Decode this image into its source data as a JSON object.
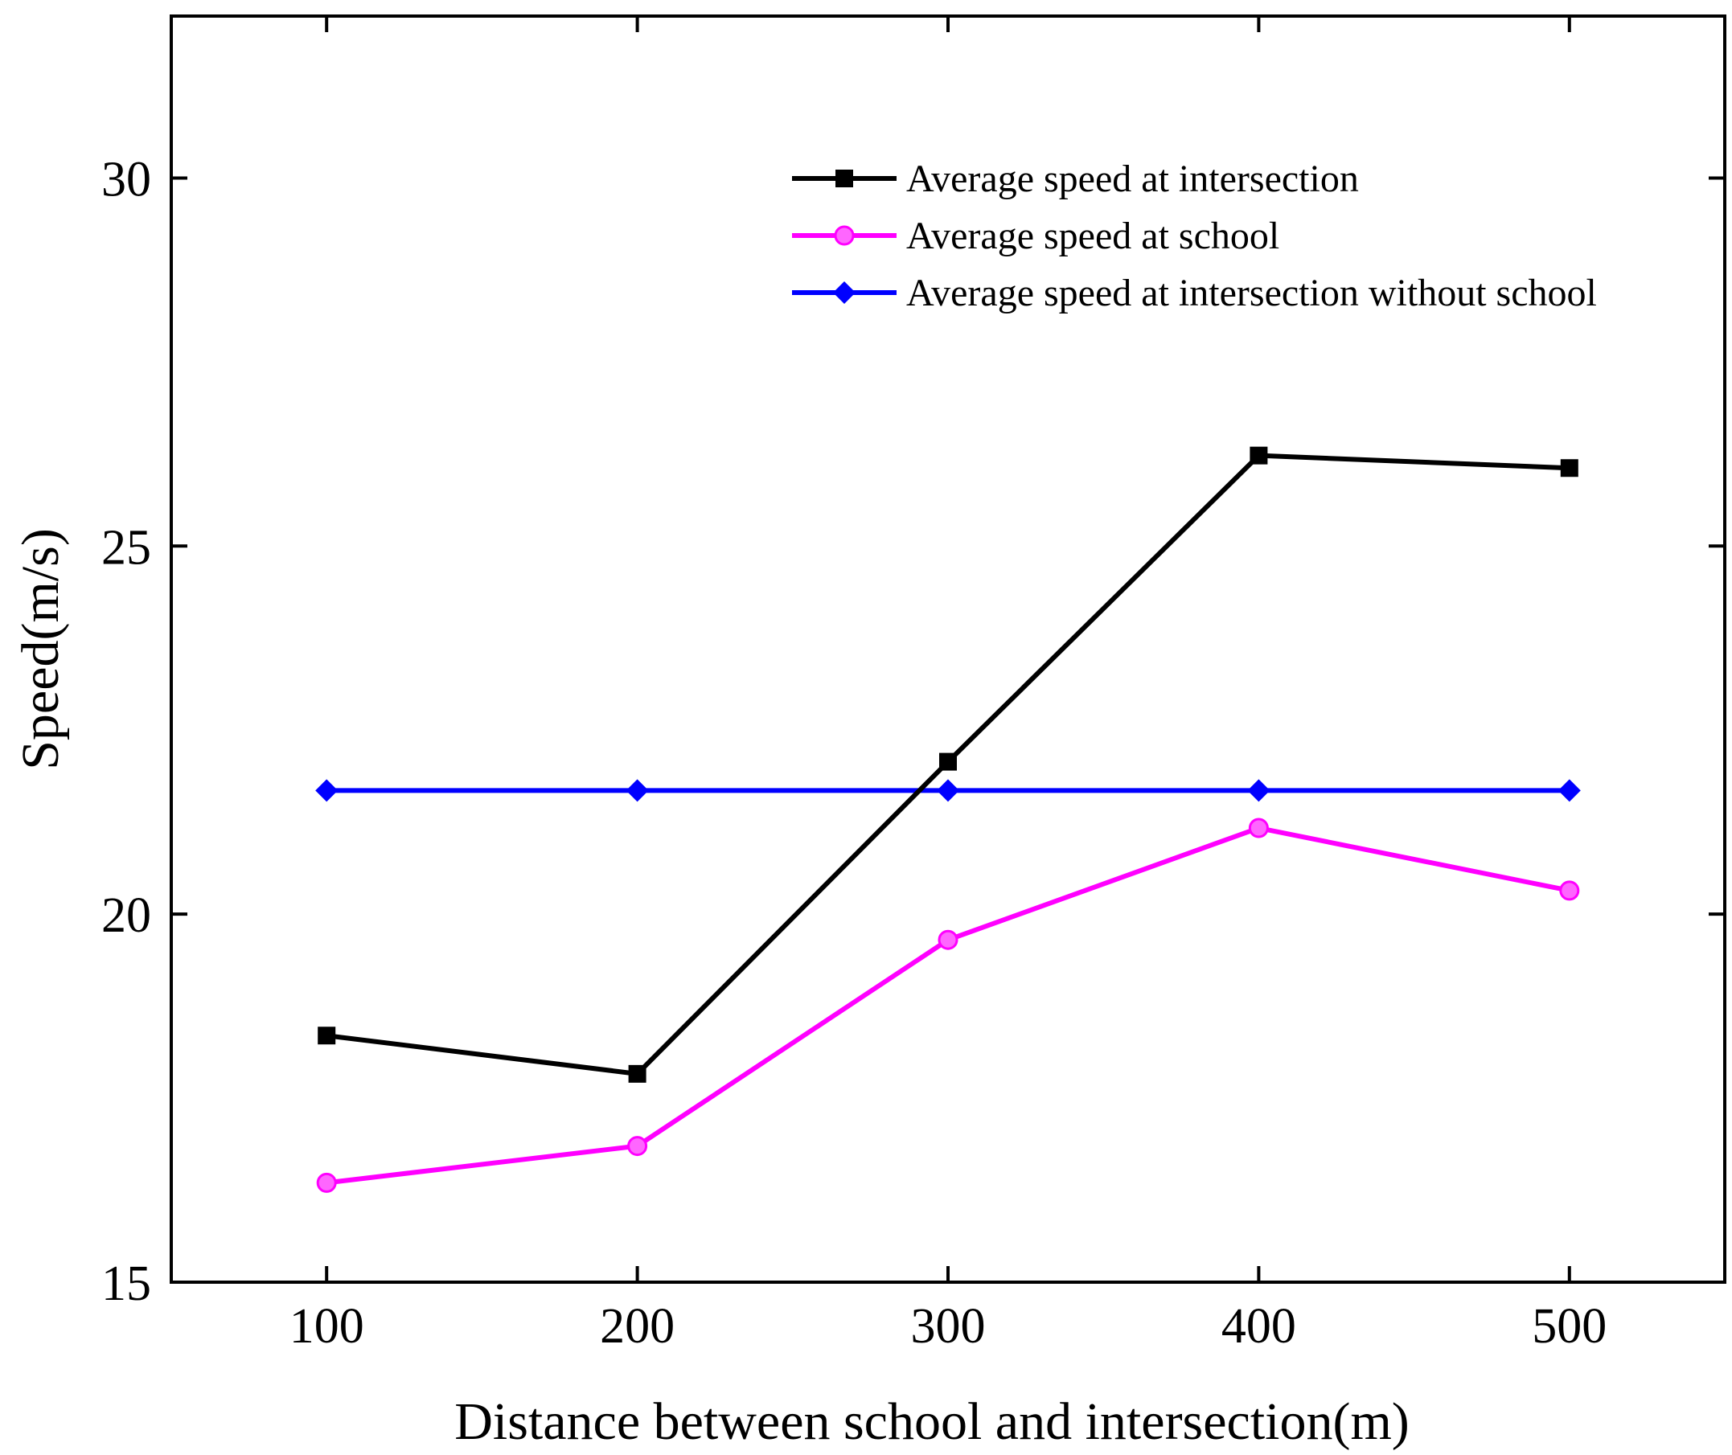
{
  "chart_data": {
    "type": "line",
    "title": "",
    "xlabel": "Distance between school and intersection(m)",
    "ylabel": "Speed(m/s)",
    "x": [
      100,
      200,
      300,
      400,
      500
    ],
    "xlim": [
      50,
      550
    ],
    "ylim": [
      15,
      32.2
    ],
    "xticks": [
      100,
      200,
      300,
      400,
      500
    ],
    "yticks": [
      15,
      20,
      25,
      30
    ],
    "grid": false,
    "legend_position": "top-right",
    "series": [
      {
        "name": "Average speed at intersection",
        "values": [
          18.35,
          17.83,
          22.07,
          26.23,
          26.06
        ],
        "color": "#000000",
        "marker": "square"
      },
      {
        "name": "Average speed at school",
        "values": [
          16.35,
          16.85,
          19.65,
          21.17,
          20.32
        ],
        "color": "#ff00ff",
        "marker": "circle"
      },
      {
        "name": "Average speed at intersection without school",
        "values": [
          21.68,
          21.68,
          21.68,
          21.68,
          21.68
        ],
        "color": "#0000ff",
        "marker": "diamond"
      }
    ]
  }
}
